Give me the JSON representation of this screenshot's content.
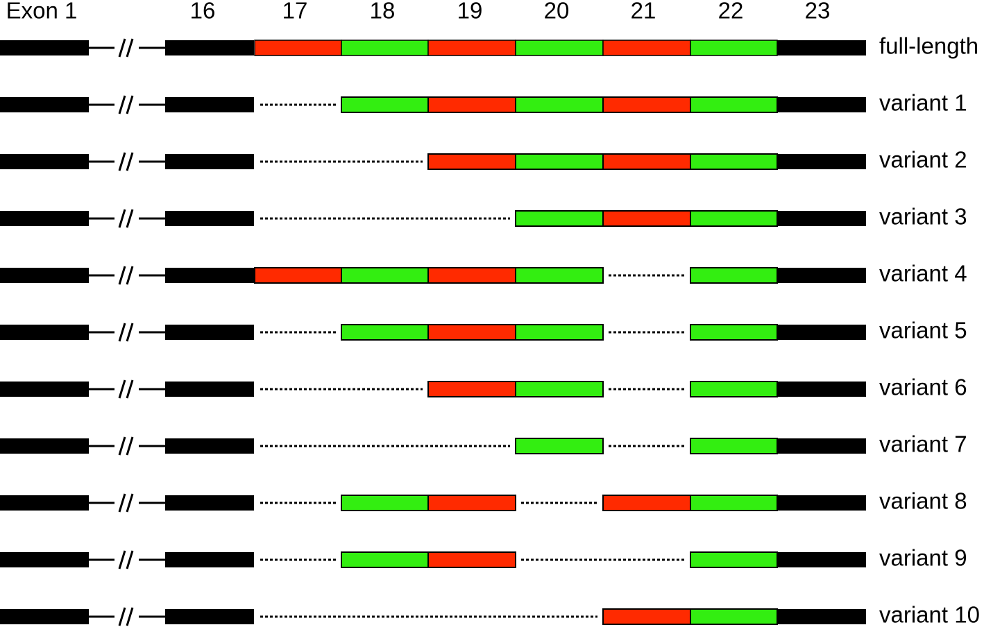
{
  "exons": [
    "Exon 1",
    "16",
    "17",
    "18",
    "19",
    "20",
    "21",
    "22",
    "23"
  ],
  "exon_colors": [
    "#000000",
    "#000000",
    "#ff2a00",
    "#33ee11",
    "#ff2a00",
    "#33ee11",
    "#ff2a00",
    "#33ee11",
    "#000000"
  ],
  "rows": [
    {
      "label": "full-length",
      "included": [
        true,
        true,
        true,
        true,
        true,
        true
      ]
    },
    {
      "label": "variant 1",
      "included": [
        false,
        true,
        true,
        true,
        true,
        true
      ]
    },
    {
      "label": "variant 2",
      "included": [
        false,
        false,
        true,
        true,
        true,
        true
      ]
    },
    {
      "label": "variant 3",
      "included": [
        false,
        false,
        false,
        true,
        true,
        true
      ]
    },
    {
      "label": "variant 4",
      "included": [
        true,
        true,
        true,
        true,
        false,
        true
      ]
    },
    {
      "label": "variant 5",
      "included": [
        false,
        true,
        true,
        true,
        false,
        true
      ]
    },
    {
      "label": "variant 6",
      "included": [
        false,
        false,
        true,
        true,
        false,
        true
      ]
    },
    {
      "label": "variant 7",
      "included": [
        false,
        false,
        false,
        true,
        false,
        true
      ]
    },
    {
      "label": "variant 8",
      "included": [
        false,
        true,
        true,
        false,
        true,
        true
      ]
    },
    {
      "label": "variant 9",
      "included": [
        false,
        true,
        true,
        false,
        false,
        true
      ]
    },
    {
      "label": "variant 10",
      "included": [
        false,
        false,
        false,
        false,
        true,
        true
      ]
    }
  ]
}
